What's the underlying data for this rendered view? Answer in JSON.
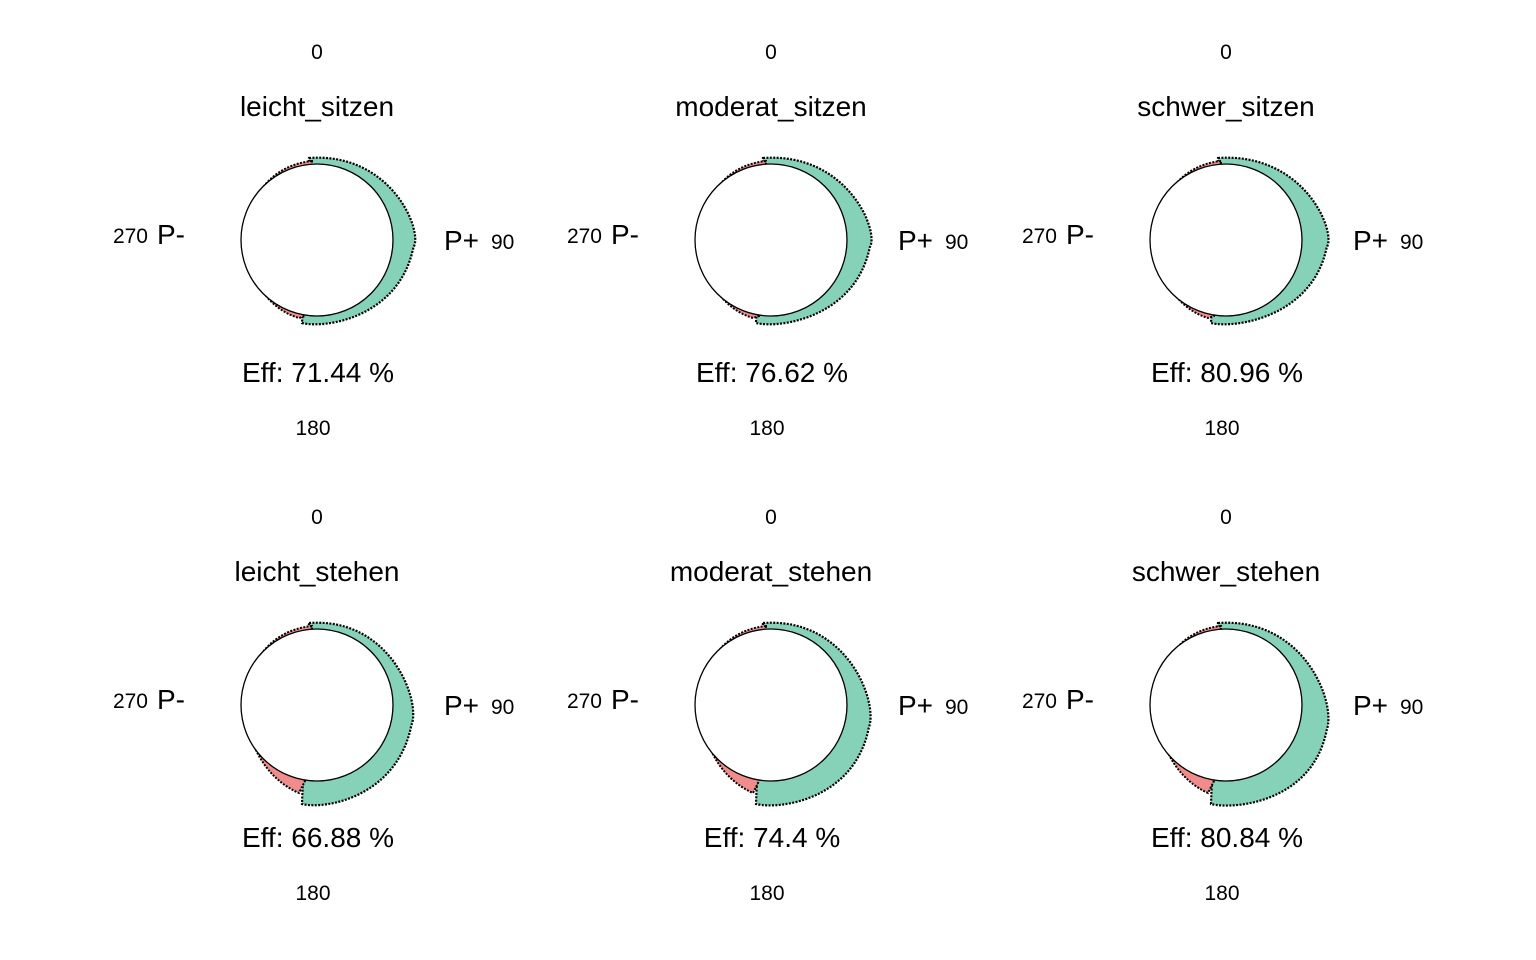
{
  "chart_data": [
    {
      "type": "polar",
      "title": "leicht_sitzen",
      "angle_labels": {
        "top": "0",
        "right": "90",
        "bottom": "180",
        "left": "270"
      },
      "pole_labels": {
        "positive": "P+",
        "negative": "P-"
      },
      "efficiency_label": "Eff: 71.44 %",
      "efficiency_percent": 71.44,
      "colors": {
        "positive": "#86D2B9",
        "negative": "#F08C8C"
      }
    },
    {
      "type": "polar",
      "title": "moderat_sitzen",
      "angle_labels": {
        "top": "0",
        "right": "90",
        "bottom": "180",
        "left": "270"
      },
      "pole_labels": {
        "positive": "P+",
        "negative": "P-"
      },
      "efficiency_label": "Eff: 76.62 %",
      "efficiency_percent": 76.62,
      "colors": {
        "positive": "#86D2B9",
        "negative": "#F08C8C"
      }
    },
    {
      "type": "polar",
      "title": "schwer_sitzen",
      "angle_labels": {
        "top": "0",
        "right": "90",
        "bottom": "180",
        "left": "270"
      },
      "pole_labels": {
        "positive": "P+",
        "negative": "P-"
      },
      "efficiency_label": "Eff: 80.96 %",
      "efficiency_percent": 80.96,
      "colors": {
        "positive": "#86D2B9",
        "negative": "#F08C8C"
      }
    },
    {
      "type": "polar",
      "title": "leicht_stehen",
      "angle_labels": {
        "top": "0",
        "right": "90",
        "bottom": "180",
        "left": "270"
      },
      "pole_labels": {
        "positive": "P+",
        "negative": "P-"
      },
      "efficiency_label": "Eff: 66.88 %",
      "efficiency_percent": 66.88,
      "colors": {
        "positive": "#86D2B9",
        "negative": "#F08C8C"
      }
    },
    {
      "type": "polar",
      "title": "moderat_stehen",
      "angle_labels": {
        "top": "0",
        "right": "90",
        "bottom": "180",
        "left": "270"
      },
      "pole_labels": {
        "positive": "P+",
        "negative": "P-"
      },
      "efficiency_label": "Eff: 74.4 %",
      "efficiency_percent": 74.4,
      "colors": {
        "positive": "#86D2B9",
        "negative": "#F08C8C"
      }
    },
    {
      "type": "polar",
      "title": "schwer_stehen",
      "angle_labels": {
        "top": "0",
        "right": "90",
        "bottom": "180",
        "left": "270"
      },
      "pole_labels": {
        "positive": "P+",
        "negative": "P-"
      },
      "efficiency_label": "Eff: 80.84 %",
      "efficiency_percent": 80.84,
      "colors": {
        "positive": "#86D2B9",
        "negative": "#F08C8C"
      }
    }
  ]
}
